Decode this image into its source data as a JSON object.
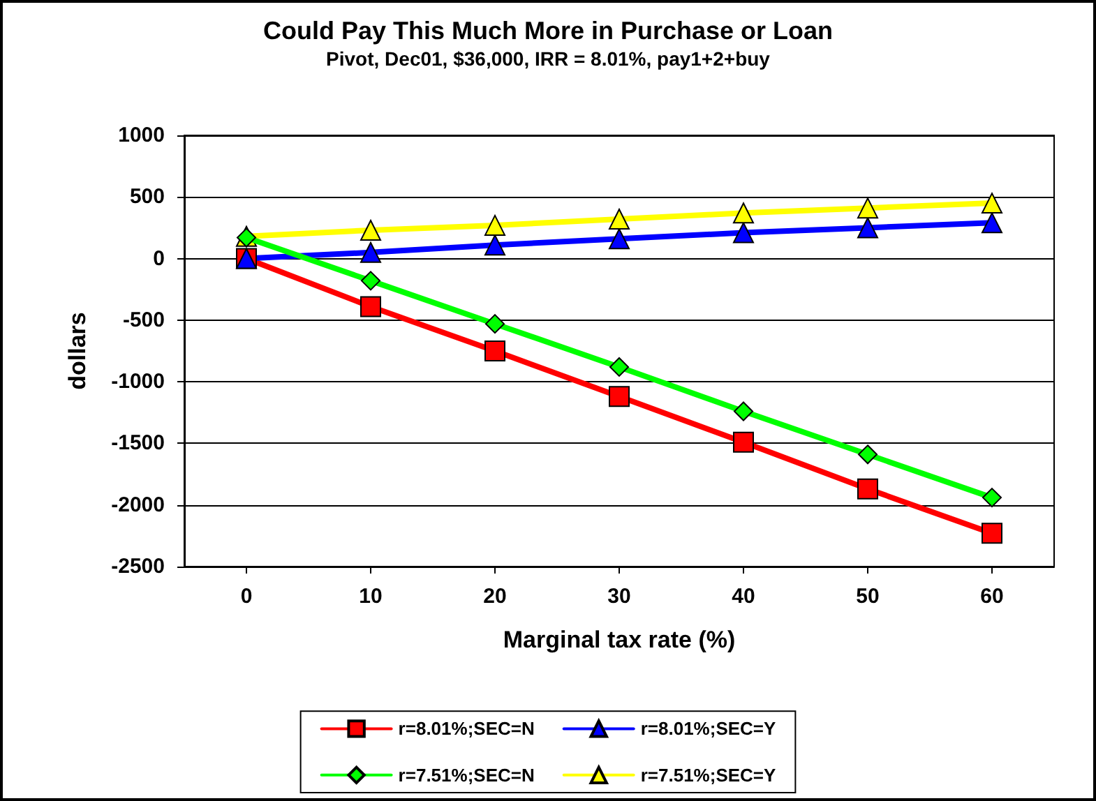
{
  "chart_data": {
    "type": "line",
    "title": "Could Pay This Much More in Purchase or Loan",
    "subtitle": "Pivot, Dec01, $36,000, IRR = 8.01%, pay1+2+buy",
    "xlabel": "Marginal tax rate (%)",
    "ylabel": "dollars",
    "categories": [
      "0",
      "10",
      "20",
      "30",
      "40",
      "50",
      "60"
    ],
    "series": [
      {
        "name": "r=8.01%;SEC=N",
        "color": "#ff0000",
        "marker": "square",
        "values": [
          0,
          -390,
          -750,
          -1120,
          -1490,
          -1870,
          -2230
        ]
      },
      {
        "name": "r=8.01%;SEC=Y",
        "color": "#0000ff",
        "marker": "triangle",
        "values": [
          0,
          50,
          110,
          160,
          210,
          250,
          290
        ]
      },
      {
        "name": "r=7.51%;SEC=N",
        "color": "#00ff00",
        "marker": "diamond",
        "values": [
          170,
          -180,
          -530,
          -880,
          -1240,
          -1590,
          -1940
        ]
      },
      {
        "name": "r=7.51%;SEC=Y",
        "color": "#ffff00",
        "marker": "triangle",
        "values": [
          180,
          230,
          270,
          320,
          370,
          410,
          450
        ]
      }
    ],
    "ylim": [
      -2500,
      1000
    ],
    "yticks": [
      -2500,
      -2000,
      -1500,
      -1000,
      -500,
      0,
      500,
      1000
    ],
    "grid": "y",
    "legend": "bottom",
    "line_style": "solid"
  }
}
